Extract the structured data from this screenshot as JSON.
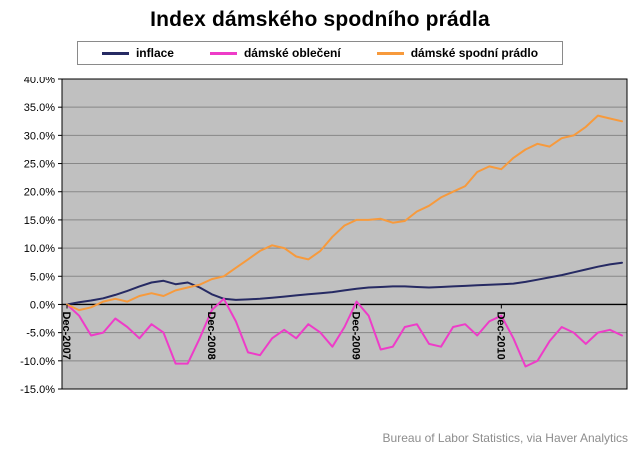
{
  "title": "Index dámského spodního prádla",
  "footer": "Bureau of Labor Statistics, via Haver Analytics",
  "chart_data": {
    "type": "line",
    "title": "Index dámského spodního prádla",
    "ylim": [
      -15,
      40
    ],
    "y_step": 5,
    "y_tick_suffix": "%",
    "plot_bg": "#c0c0c0",
    "gridline_color": "#878787",
    "axis_color": "#000000",
    "x_tick_labels": [
      "Dec-2007",
      "Dec-2008",
      "Dec-2009",
      "Dec-2010"
    ],
    "x_tick_positions": [
      0,
      12,
      24,
      36
    ],
    "series": [
      {
        "name": "inflace",
        "color": "#262a63",
        "values": [
          0.0,
          0.4,
          0.7,
          1.1,
          1.7,
          2.4,
          3.2,
          3.9,
          4.2,
          3.6,
          3.9,
          3.0,
          1.8,
          1.0,
          0.8,
          0.9,
          1.0,
          1.2,
          1.4,
          1.6,
          1.8,
          2.0,
          2.2,
          2.5,
          2.8,
          3.0,
          3.1,
          3.2,
          3.2,
          3.1,
          3.0,
          3.1,
          3.2,
          3.3,
          3.4,
          3.5,
          3.6,
          3.7,
          4.0,
          4.4,
          4.8,
          5.2,
          5.7,
          6.2,
          6.7,
          7.1,
          7.4
        ]
      },
      {
        "name": "dámské oblečení",
        "color": "#ee3cc8",
        "values": [
          0.0,
          -2.0,
          -5.5,
          -5.0,
          -2.5,
          -4.0,
          -6.0,
          -3.5,
          -5.0,
          -10.5,
          -10.5,
          -6.0,
          -1.0,
          1.0,
          -3.0,
          -8.5,
          -9.0,
          -6.0,
          -4.5,
          -6.0,
          -3.5,
          -5.0,
          -7.5,
          -4.0,
          0.5,
          -2.0,
          -8.0,
          -7.5,
          -4.0,
          -3.5,
          -7.0,
          -7.5,
          -4.0,
          -3.5,
          -5.5,
          -3.0,
          -2.0,
          -6.0,
          -11.0,
          -10.0,
          -6.5,
          -4.0,
          -5.0,
          -7.0,
          -5.0,
          -4.5,
          -5.5
        ]
      },
      {
        "name": "dámské spodní prádlo",
        "color": "#f79a3c",
        "values": [
          0.0,
          -1.0,
          -0.5,
          0.5,
          1.0,
          0.5,
          1.5,
          2.0,
          1.5,
          2.5,
          3.0,
          3.5,
          4.5,
          5.0,
          6.5,
          8.0,
          9.5,
          10.5,
          10.0,
          8.5,
          8.0,
          9.5,
          12.0,
          14.0,
          15.0,
          15.0,
          15.2,
          14.5,
          14.8,
          16.5,
          17.5,
          19.0,
          20.0,
          21.0,
          23.5,
          24.5,
          24.0,
          26.0,
          27.5,
          28.5,
          28.0,
          29.5,
          30.0,
          31.5,
          33.5,
          33.0,
          32.5
        ]
      }
    ]
  }
}
